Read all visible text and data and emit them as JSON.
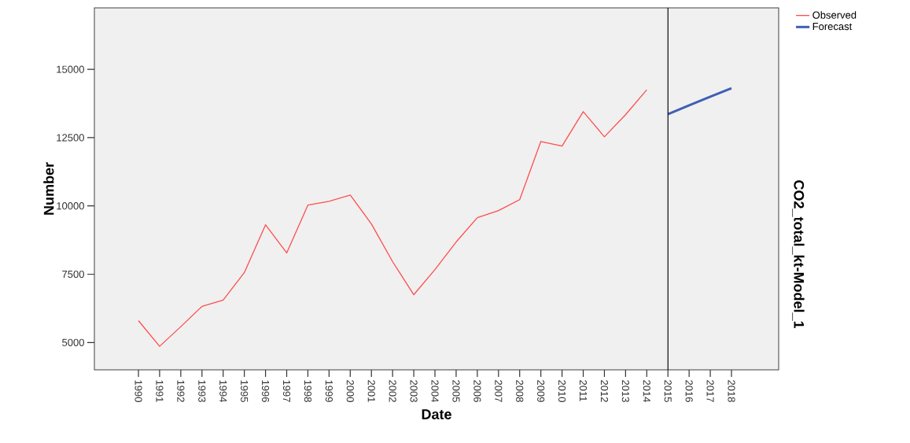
{
  "chart_data": {
    "type": "line",
    "xlabel": "Date",
    "ylabel": "Number",
    "y2label": "CO2_total_kt-Model_1",
    "categories": [
      "1990",
      "1991",
      "1992",
      "1993",
      "1994",
      "1995",
      "1996",
      "1997",
      "1998",
      "1999",
      "2000",
      "2001",
      "2002",
      "2003",
      "2004",
      "2005",
      "2006",
      "2007",
      "2008",
      "2009",
      "2010",
      "2011",
      "2012",
      "2013",
      "2014",
      "2015",
      "2016",
      "2017",
      "2018"
    ],
    "series": [
      {
        "name": "Observed",
        "color": "#ff4d4d",
        "values": [
          5800,
          4860,
          5580,
          6320,
          6550,
          7560,
          9310,
          8280,
          10030,
          10170,
          10400,
          9340,
          7960,
          6750,
          7670,
          8680,
          9570,
          9830,
          10230,
          12360,
          12190,
          13450,
          12530,
          13340,
          14250,
          null,
          null,
          null,
          null
        ]
      },
      {
        "name": "Forecast",
        "color": "#3f5fb5",
        "values": [
          null,
          null,
          null,
          null,
          null,
          null,
          null,
          null,
          null,
          null,
          null,
          null,
          null,
          null,
          null,
          null,
          null,
          null,
          null,
          null,
          null,
          null,
          null,
          null,
          null,
          13360,
          13680,
          14000,
          14310
        ]
      }
    ],
    "ylim": [
      4000,
      17250
    ],
    "yticks": [
      5000,
      7500,
      10000,
      12500,
      15000
    ],
    "ref_lines": [
      {
        "axis": "x",
        "value": "2015",
        "color": "#000000"
      }
    ],
    "legend": "top right",
    "grid": false,
    "marker": "none",
    "line_style": "solid"
  }
}
